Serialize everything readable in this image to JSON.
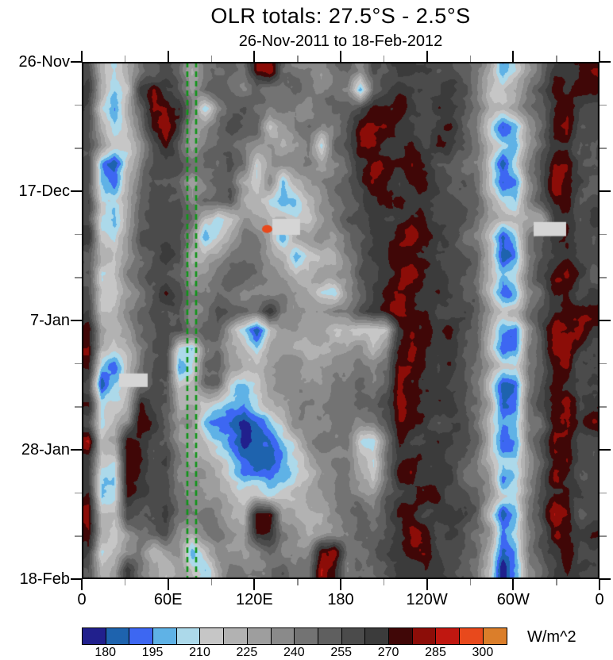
{
  "title": "OLR totals: 27.5°S - 2.5°S",
  "subtitle": "26-Nov-2011 to 18-Feb-2012",
  "colorbar": {
    "unit": "W/m^2",
    "boundary_labels": [
      "180",
      "195",
      "210",
      "225",
      "240",
      "255",
      "270",
      "285",
      "300"
    ],
    "labeled_boundary_indices": [
      1,
      3,
      5,
      7,
      9,
      11,
      13,
      15,
      17
    ]
  },
  "x_axis": {
    "major_ticks": [
      {
        "deg": 0,
        "label": "0"
      },
      {
        "deg": 60,
        "label": "60E"
      },
      {
        "deg": 120,
        "label": "120E"
      },
      {
        "deg": 180,
        "label": "180"
      },
      {
        "deg": 240,
        "label": "120W"
      },
      {
        "deg": 300,
        "label": "60W"
      },
      {
        "deg": 360,
        "label": "0"
      }
    ],
    "minor_step_deg": 30
  },
  "y_axis": {
    "major_ticks": [
      {
        "day": 0,
        "label": "26-Nov"
      },
      {
        "day": 21,
        "label": "17-Dec"
      },
      {
        "day": 42,
        "label": "7-Jan"
      },
      {
        "day": 63,
        "label": "28-Jan"
      },
      {
        "day": 84,
        "label": "18-Feb"
      }
    ],
    "minor_step_days": 7
  },
  "chart_data": {
    "type": "heatmap",
    "title": "OLR totals: 27.5°S - 2.5°S",
    "subtitle": "26-Nov-2011 to 18-Feb-2012",
    "x": {
      "name": "longitude",
      "range_deg": [
        0,
        360
      ],
      "direction": "0E eastward to 0"
    },
    "y": {
      "name": "time",
      "start": "26-Nov-2011",
      "end": "18-Feb-2012",
      "range_days": [
        0,
        84
      ],
      "top_is_start": true
    },
    "value": {
      "name": "OLR",
      "unit": "W/m^2",
      "contour_levels": {
        "min": 180,
        "max": 300,
        "step": 7.5
      }
    },
    "palette": [
      "#21208D",
      "#1E63AE",
      "#3D67F2",
      "#5FB2E6",
      "#ACD9EA",
      "#C6C6C6",
      "#B2B2B2",
      "#9E9E9E",
      "#8A8A8A",
      "#737373",
      "#5F5F5F",
      "#4B4B4B",
      "#3B3B3B",
      "#400707",
      "#8C0D08",
      "#C01710",
      "#E8491C",
      "#DB7E2A"
    ],
    "grid": {
      "cols": 40,
      "rows": 28,
      "col_centers": "lon_deg = 4.5 + 9*col",
      "row_centers": "day = 1.5 + 3*row",
      "charset": "0123456789abcdefgh",
      "value_from_index": "OLR W/m^2 ~= 175 + 7.5*index (0 => <180, 17 => >300)",
      "rows_top_to_bottom": [
        "b6579aba79aa9dea9989a8bbcccbba97358accde",
        "c746decb8aba9a99a99a93acdccbcb96569bdded",
        "b537aeed848aa989989aabdddcccbba7679adecb",
        "b6469dec78abaa579989bdeedcbcdb95248adebb",
        "b7558bdb89aa9876894abeedcdcdca96438acdbb",
        "b3158abb9aaba5789979acdddedbba95149bddbb",
        "b4269bba79ba65836899acedcddcbba6238bedcb",
        "c546abbb8aab76433689abdedcccbaa7549bdebb",
        "b437abcb954687665579bcdccddbbb976677cdbc",
        "c548bbbb835898736788abccdedcba96249bddcb",
        "b657abcb7789998735668acdedcbbaa7138acdbb",
        "b568abba789aa99866778bccdedcbba7459bdecb",
        "b6579bdb89aa998987548acdddccba96249addbc",
        "c668abbb89baaad988899bcdeddbbba8569bcddd",
        "e7679abb9aa6416887766556cddcdba7328bedec",
        "e6568ab43897647876677868dedccba6239beecb",
        "c3269ab249a8768887888989eedbcb97559adebb",
        "b1469bb56994357898899a9aeddcbba6128bedcb",
        "c457dbb77543246789999aabedcccba7129bdebd",
        "b568dcb8842102468889999adddbcb96349aeecd",
        "e67dcbb8764201246899a549dccdcba7239bedbb",
        "c55edbc9776421135789965acddcbb96448adecb",
        "c44ecbb8887533235688976addccca97248bedbb",
        "d34dcbb9888755456778998bcdddbba7559bddcb",
        "e56cbbc989876de766689a9bddcccba6139beebb",
        "e658abb878987dc876789aabcedbcb97248addcc",
        "c5679678468889a988de99abcddcbba7139bdebb",
        "b67d97675479999a99ed9aabccdcba96038acdcb"
      ]
    },
    "missing_data_regions": [
      {
        "lon_deg": [
          132.5,
          151.8
        ],
        "day": [
          25.5,
          28.1
        ]
      },
      {
        "lon_deg": [
          25.9,
          45.8
        ],
        "day": [
          50.6,
          52.8
        ]
      },
      {
        "lon_deg": [
          314.2,
          336.8
        ],
        "day": [
          26.0,
          28.3
        ]
      }
    ],
    "missing_color": "#D5D5D5",
    "reference_lines": {
      "style": "dashed",
      "color": "#0F9618",
      "lons_deg": [
        73.4,
        79.5
      ]
    },
    "spot_marker": {
      "lon_deg": [
        125.3,
        132.5
      ],
      "day": [
        26.5,
        27.8
      ],
      "color": "#E8491C"
    }
  }
}
